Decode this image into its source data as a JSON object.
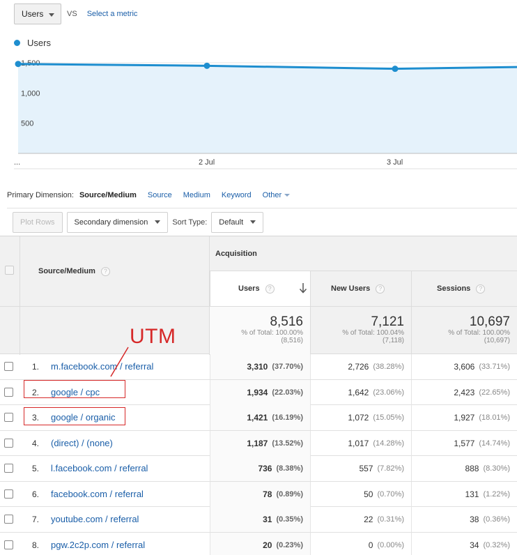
{
  "metric_selector": {
    "metric": "Users",
    "vs": "VS",
    "select_metric": "Select a metric"
  },
  "legend": {
    "label": "Users",
    "color": "#1e8ecf"
  },
  "chart_data": {
    "type": "area",
    "x": [
      "...",
      "2 Jul",
      "3 Jul",
      ""
    ],
    "xlabel": "",
    "ylabel": "",
    "y_ticks": [
      "1,500",
      "1,000",
      "500"
    ],
    "ylim": [
      0,
      1500
    ],
    "series": [
      {
        "name": "Users",
        "values": [
          1480,
          1450,
          1400,
          1430
        ]
      }
    ],
    "grid": true
  },
  "primary_dimension": {
    "label": "Primary Dimension:",
    "selected": "Source/Medium",
    "options": [
      "Source",
      "Medium",
      "Keyword",
      "Other"
    ]
  },
  "toolbar": {
    "plot_rows": "Plot Rows",
    "secondary_dimension": "Secondary dimension",
    "sort_type_label": "Sort Type:",
    "sort_type_value": "Default"
  },
  "table": {
    "dimension_header": "Source/Medium",
    "group_header": "Acquisition",
    "columns": [
      "Users",
      "New Users",
      "Sessions"
    ],
    "totals": [
      {
        "value": "8,516",
        "line1": "% of Total: 100.00%",
        "line2": "(8,516)"
      },
      {
        "value": "7,121",
        "line1": "% of Total: 100.04%",
        "line2": "(7,118)"
      },
      {
        "value": "10,697",
        "line1": "% of Total: 100.00%",
        "line2": "(10,697)"
      }
    ],
    "rows": [
      {
        "num": "1.",
        "source": "m.facebook.com / referral",
        "users": "3,310",
        "users_pct": "(37.70%)",
        "new_users": "2,726",
        "new_users_pct": "(38.28%)",
        "sessions": "3,606",
        "sessions_pct": "(33.71%)"
      },
      {
        "num": "2.",
        "source": "google / cpc",
        "users": "1,934",
        "users_pct": "(22.03%)",
        "new_users": "1,642",
        "new_users_pct": "(23.06%)",
        "sessions": "2,423",
        "sessions_pct": "(22.65%)"
      },
      {
        "num": "3.",
        "source": "google / organic",
        "users": "1,421",
        "users_pct": "(16.19%)",
        "new_users": "1,072",
        "new_users_pct": "(15.05%)",
        "sessions": "1,927",
        "sessions_pct": "(18.01%)"
      },
      {
        "num": "4.",
        "source": "(direct) / (none)",
        "users": "1,187",
        "users_pct": "(13.52%)",
        "new_users": "1,017",
        "new_users_pct": "(14.28%)",
        "sessions": "1,577",
        "sessions_pct": "(14.74%)"
      },
      {
        "num": "5.",
        "source": "l.facebook.com / referral",
        "users": "736",
        "users_pct": "(8.38%)",
        "new_users": "557",
        "new_users_pct": "(7.82%)",
        "sessions": "888",
        "sessions_pct": "(8.30%)"
      },
      {
        "num": "6.",
        "source": "facebook.com / referral",
        "users": "78",
        "users_pct": "(0.89%)",
        "new_users": "50",
        "new_users_pct": "(0.70%)",
        "sessions": "131",
        "sessions_pct": "(1.22%)"
      },
      {
        "num": "7.",
        "source": "youtube.com / referral",
        "users": "31",
        "users_pct": "(0.35%)",
        "new_users": "22",
        "new_users_pct": "(0.31%)",
        "sessions": "38",
        "sessions_pct": "(0.36%)"
      },
      {
        "num": "8.",
        "source": "pgw.2c2p.com / referral",
        "users": "20",
        "users_pct": "(0.23%)",
        "new_users": "0",
        "new_users_pct": "(0.00%)",
        "sessions": "34",
        "sessions_pct": "(0.32%)"
      }
    ]
  },
  "annotation": {
    "label": "UTM",
    "color": "#d62828"
  }
}
